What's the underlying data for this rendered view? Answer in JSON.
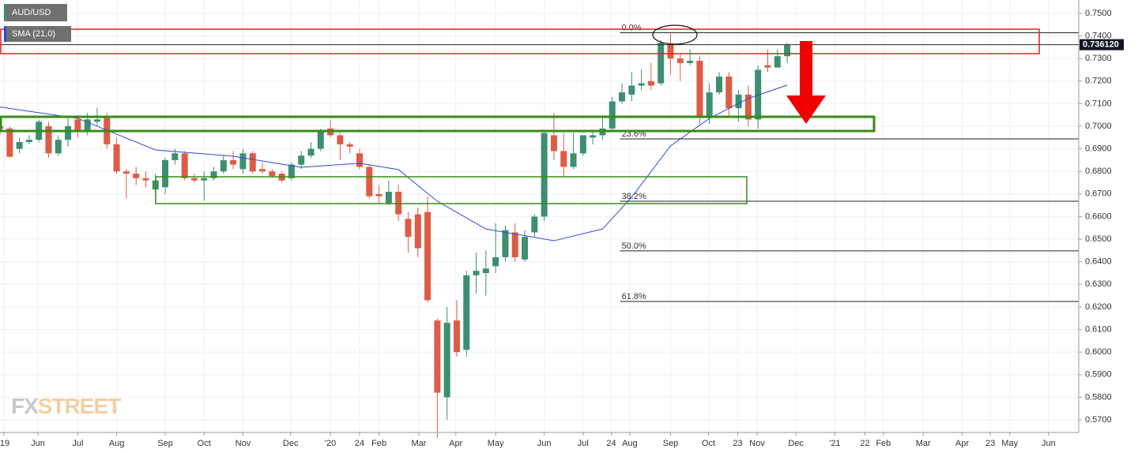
{
  "chart_data": {
    "type": "candlestick",
    "title": "AUD/USD",
    "up_color": "#3d8f70",
    "down_color": "#dd5c45",
    "grid": true,
    "xlim": [
      0,
      111
    ],
    "ylim": [
      0.5644,
      0.7559
    ],
    "yticks": [
      {
        "value": 0.75,
        "label": "0.7500"
      },
      {
        "value": 0.74,
        "label": "0.7400"
      },
      {
        "value": 0.73,
        "label": "0.7300"
      },
      {
        "value": 0.72,
        "label": "0.7200"
      },
      {
        "value": 0.71,
        "label": "0.7100"
      },
      {
        "value": 0.7,
        "label": "0.7000"
      },
      {
        "value": 0.69,
        "label": "0.6900"
      },
      {
        "value": 0.68,
        "label": "0.6800"
      },
      {
        "value": 0.67,
        "label": "0.6700"
      },
      {
        "value": 0.66,
        "label": "0.6600"
      },
      {
        "value": 0.65,
        "label": "0.6500"
      },
      {
        "value": 0.64,
        "label": "0.6400"
      },
      {
        "value": 0.63,
        "label": "0.6300"
      },
      {
        "value": 0.62,
        "label": "0.6200"
      },
      {
        "value": 0.61,
        "label": "0.6100"
      },
      {
        "value": 0.6,
        "label": "0.6000"
      },
      {
        "value": 0.59,
        "label": "0.5900"
      },
      {
        "value": 0.58,
        "label": "0.5800"
      },
      {
        "value": 0.57,
        "label": "0.5700"
      }
    ],
    "xticks": [
      {
        "value": 0.4,
        "label": "'19"
      },
      {
        "value": 3.9,
        "label": "Jun"
      },
      {
        "value": 8,
        "label": "Jul"
      },
      {
        "value": 12,
        "label": "Aug"
      },
      {
        "value": 17,
        "label": "Sep"
      },
      {
        "value": 21,
        "label": "Oct"
      },
      {
        "value": 25,
        "label": "Nov"
      },
      {
        "value": 29.9,
        "label": "Dec"
      },
      {
        "value": 34,
        "label": "'20"
      },
      {
        "value": 37,
        "label": "24"
      },
      {
        "value": 39,
        "label": "Feb"
      },
      {
        "value": 43.1,
        "label": "Mar"
      },
      {
        "value": 46.9,
        "label": "Apr"
      },
      {
        "value": 51,
        "label": "May"
      },
      {
        "value": 56,
        "label": "Jun"
      },
      {
        "value": 60,
        "label": "Jul"
      },
      {
        "value": 62.9,
        "label": "24"
      },
      {
        "value": 64.8,
        "label": "Aug"
      },
      {
        "value": 69,
        "label": "Sep"
      },
      {
        "value": 72.9,
        "label": "Oct"
      },
      {
        "value": 75.9,
        "label": "23"
      },
      {
        "value": 77.9,
        "label": "Nov"
      },
      {
        "value": 81.9,
        "label": "Dec"
      },
      {
        "value": 85.9,
        "label": "'21"
      },
      {
        "value": 89,
        "label": "22"
      },
      {
        "value": 90.9,
        "label": "Feb"
      },
      {
        "value": 95,
        "label": "Mar"
      },
      {
        "value": 99,
        "label": "Apr"
      },
      {
        "value": 101.9,
        "label": "23"
      },
      {
        "value": 103.9,
        "label": "May"
      },
      {
        "value": 107.9,
        "label": "Jun"
      }
    ],
    "x": [
      0,
      1,
      2,
      3,
      4,
      5,
      6,
      7,
      8,
      9,
      10,
      11,
      12,
      13,
      14,
      15,
      16,
      17,
      18,
      19,
      20,
      21,
      22,
      23,
      24,
      25,
      26,
      27,
      28,
      29,
      30,
      31,
      32,
      33,
      34,
      35,
      36,
      37,
      38,
      39,
      40,
      41,
      42,
      43,
      44,
      45,
      46,
      47,
      48,
      49,
      50,
      51,
      52,
      53,
      54,
      55,
      56,
      57,
      58,
      59,
      60,
      61,
      62,
      63,
      64,
      65,
      66,
      67,
      68,
      69,
      70,
      71,
      72,
      73,
      74,
      75,
      76,
      77,
      78,
      79,
      80,
      81
    ],
    "open": [
      0.7,
      0.699,
      0.69,
      0.693,
      0.694,
      0.7,
      0.688,
      0.694,
      0.703,
      0.698,
      0.702,
      0.704,
      0.692,
      0.68,
      0.679,
      0.677,
      0.672,
      0.673,
      0.685,
      0.688,
      0.677,
      0.676,
      0.677,
      0.68,
      0.685,
      0.681,
      0.688,
      0.681,
      0.68,
      0.679,
      0.677,
      0.683,
      0.687,
      0.69,
      0.699,
      0.696,
      0.692,
      0.688,
      0.682,
      0.67,
      0.666,
      0.671,
      0.659,
      0.661,
      0.662,
      0.614,
      0.58,
      0.614,
      0.601,
      0.634,
      0.635,
      0.638,
      0.642,
      0.653,
      0.641,
      0.653,
      0.66,
      0.696,
      0.689,
      0.682,
      0.688,
      0.695,
      0.696,
      0.699,
      0.711,
      0.714,
      0.718,
      0.72,
      0.719,
      0.736,
      0.73,
      0.728,
      0.729,
      0.704,
      0.715,
      0.722,
      0.708,
      0.714,
      0.703,
      0.727,
      0.726,
      0.731
    ],
    "high": [
      0.703,
      0.7,
      0.695,
      0.696,
      0.703,
      0.702,
      0.696,
      0.704,
      0.705,
      0.706,
      0.708,
      0.706,
      0.695,
      0.681,
      0.682,
      0.68,
      0.679,
      0.686,
      0.69,
      0.689,
      0.679,
      0.68,
      0.682,
      0.687,
      0.689,
      0.69,
      0.689,
      0.684,
      0.681,
      0.68,
      0.684,
      0.689,
      0.693,
      0.699,
      0.703,
      0.697,
      0.693,
      0.69,
      0.683,
      0.674,
      0.676,
      0.674,
      0.662,
      0.664,
      0.669,
      0.615,
      0.62,
      0.623,
      0.636,
      0.644,
      0.645,
      0.657,
      0.656,
      0.657,
      0.654,
      0.661,
      0.698,
      0.706,
      0.697,
      0.697,
      0.696,
      0.698,
      0.705,
      0.713,
      0.719,
      0.724,
      0.725,
      0.728,
      0.738,
      0.741,
      0.732,
      0.734,
      0.731,
      0.719,
      0.724,
      0.724,
      0.716,
      0.718,
      0.727,
      0.734,
      0.734,
      0.737
    ],
    "low": [
      0.696,
      0.686,
      0.688,
      0.692,
      0.693,
      0.686,
      0.687,
      0.691,
      0.695,
      0.696,
      0.7,
      0.69,
      0.679,
      0.668,
      0.674,
      0.673,
      0.669,
      0.67,
      0.683,
      0.676,
      0.675,
      0.667,
      0.676,
      0.679,
      0.681,
      0.679,
      0.679,
      0.679,
      0.677,
      0.675,
      0.676,
      0.681,
      0.686,
      0.689,
      0.695,
      0.685,
      0.688,
      0.681,
      0.668,
      0.666,
      0.665,
      0.658,
      0.644,
      0.642,
      0.622,
      0.562,
      0.57,
      0.598,
      0.598,
      0.626,
      0.625,
      0.635,
      0.64,
      0.64,
      0.64,
      0.651,
      0.658,
      0.685,
      0.678,
      0.681,
      0.687,
      0.692,
      0.694,
      0.698,
      0.71,
      0.711,
      0.716,
      0.716,
      0.718,
      0.723,
      0.72,
      0.727,
      0.701,
      0.701,
      0.714,
      0.704,
      0.702,
      0.7,
      0.699,
      0.724,
      0.726,
      0.728
    ],
    "close": [
      0.699,
      0.6865,
      0.693,
      0.694,
      0.702,
      0.688,
      0.694,
      0.7,
      0.698,
      0.703,
      0.703,
      0.692,
      0.68,
      0.679,
      0.677,
      0.676,
      0.676,
      0.685,
      0.688,
      0.677,
      0.676,
      0.677,
      0.68,
      0.685,
      0.683,
      0.688,
      0.68,
      0.68,
      0.678,
      0.676,
      0.683,
      0.687,
      0.69,
      0.698,
      0.696,
      0.692,
      0.691,
      0.682,
      0.669,
      0.669,
      0.671,
      0.661,
      0.651,
      0.646,
      0.623,
      0.582,
      0.613,
      0.6,
      0.634,
      0.636,
      0.637,
      0.642,
      0.654,
      0.642,
      0.651,
      0.66,
      0.697,
      0.689,
      0.682,
      0.688,
      0.696,
      0.696,
      0.699,
      0.711,
      0.715,
      0.718,
      0.719,
      0.718,
      0.737,
      0.73,
      0.728,
      0.729,
      0.704,
      0.715,
      0.722,
      0.708,
      0.714,
      0.703,
      0.725,
      0.726,
      0.731,
      0.7361
    ],
    "sma": {
      "name": "SMA (21,0)",
      "color": "#2a4cd8",
      "x": [
        0,
        8,
        16,
        24,
        31,
        37,
        41,
        45,
        50,
        57,
        62,
        65,
        69,
        73,
        77,
        81
      ],
      "values": [
        0.7085,
        0.7035,
        0.6895,
        0.6867,
        0.6818,
        0.6836,
        0.6808,
        0.6668,
        0.6545,
        0.6493,
        0.6545,
        0.6686,
        0.6913,
        0.7035,
        0.7123,
        0.7182
      ]
    },
    "fib_start": 63.8,
    "fib_levels": [
      {
        "label": "0.0%",
        "value": 0.7414
      },
      {
        "label": "23.6%",
        "value": 0.6944
      },
      {
        "label": "38.2%",
        "value": 0.6668
      },
      {
        "label": "50.0%",
        "value": 0.6448
      },
      {
        "label": "61.8%",
        "value": 0.6224
      }
    ],
    "last_price": {
      "value": 0.73612,
      "label": "0.736120"
    },
    "watermark": [
      "FX",
      "STREET"
    ]
  }
}
